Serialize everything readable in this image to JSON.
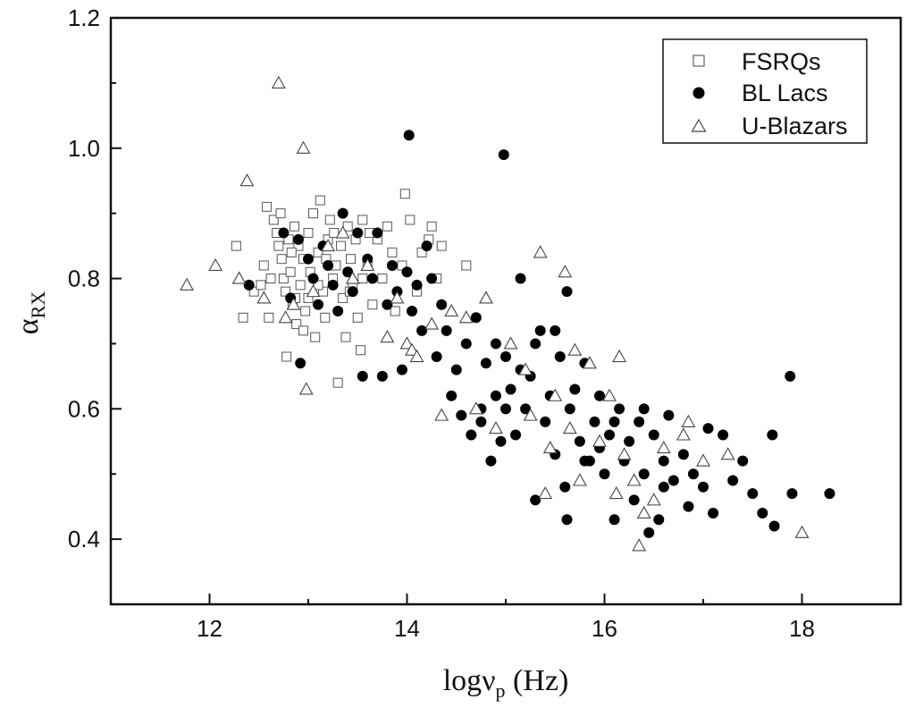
{
  "chart_data": {
    "type": "scatter",
    "title": "",
    "xlabel": {
      "main": "logν",
      "sub": "p",
      "unit": "(Hz)"
    },
    "ylabel": {
      "main": "α",
      "sub": "RX"
    },
    "xlim": [
      11,
      19
    ],
    "ylim": [
      0.3,
      1.2
    ],
    "xticks": [
      12,
      14,
      16,
      18
    ],
    "yticks": [
      0.4,
      0.6,
      0.8,
      1.0,
      1.2
    ],
    "xtick_labels": [
      "12",
      "14",
      "16",
      "18"
    ],
    "ytick_labels": [
      "0.4",
      "0.6",
      "0.8",
      "1.0",
      "1.2"
    ],
    "grid": false,
    "legend_position": "top-right",
    "series": [
      {
        "name": "FSRQs",
        "marker": "open-square",
        "points": [
          [
            12.27,
            0.85
          ],
          [
            12.34,
            0.74
          ],
          [
            12.45,
            0.78
          ],
          [
            12.52,
            0.79
          ],
          [
            12.55,
            0.82
          ],
          [
            12.58,
            0.91
          ],
          [
            12.6,
            0.74
          ],
          [
            12.65,
            0.89
          ],
          [
            12.68,
            0.87
          ],
          [
            12.7,
            0.85
          ],
          [
            12.72,
            0.9
          ],
          [
            12.73,
            0.83
          ],
          [
            12.75,
            0.8
          ],
          [
            12.77,
            0.78
          ],
          [
            12.78,
            0.68
          ],
          [
            12.8,
            0.86
          ],
          [
            12.82,
            0.81
          ],
          [
            12.84,
            0.76
          ],
          [
            12.86,
            0.88
          ],
          [
            12.88,
            0.73
          ],
          [
            12.9,
            0.85
          ],
          [
            12.92,
            0.79
          ],
          [
            12.95,
            0.83
          ],
          [
            12.97,
            0.75
          ],
          [
            13.0,
            0.87
          ],
          [
            13.02,
            0.81
          ],
          [
            13.05,
            0.9
          ],
          [
            13.07,
            0.71
          ],
          [
            13.1,
            0.84
          ],
          [
            13.12,
            0.92
          ],
          [
            13.15,
            0.78
          ],
          [
            13.17,
            0.74
          ],
          [
            13.2,
            0.86
          ],
          [
            13.22,
            0.89
          ],
          [
            13.25,
            0.8
          ],
          [
            13.28,
            0.82
          ],
          [
            13.3,
            0.64
          ],
          [
            13.33,
            0.85
          ],
          [
            13.35,
            0.77
          ],
          [
            13.38,
            0.71
          ],
          [
            13.4,
            0.88
          ],
          [
            13.43,
            0.83
          ],
          [
            13.45,
            0.79
          ],
          [
            13.48,
            0.86
          ],
          [
            13.5,
            0.74
          ],
          [
            13.53,
            0.69
          ],
          [
            13.55,
            0.89
          ],
          [
            13.6,
            0.82
          ],
          [
            13.65,
            0.76
          ],
          [
            13.7,
            0.86
          ],
          [
            13.75,
            0.8
          ],
          [
            13.8,
            0.88
          ],
          [
            13.85,
            0.84
          ],
          [
            13.88,
            0.75
          ],
          [
            13.95,
            0.82
          ],
          [
            13.98,
            0.93
          ],
          [
            14.03,
            0.89
          ],
          [
            14.1,
            0.78
          ],
          [
            14.15,
            0.84
          ],
          [
            14.22,
            0.86
          ],
          [
            14.25,
            0.88
          ],
          [
            14.3,
            0.8
          ],
          [
            14.35,
            0.85
          ],
          [
            14.6,
            0.82
          ],
          [
            13.0,
            0.77
          ],
          [
            12.95,
            0.72
          ],
          [
            13.1,
            0.79
          ],
          [
            13.18,
            0.83
          ],
          [
            13.26,
            0.87
          ],
          [
            13.42,
            0.78
          ],
          [
            12.83,
            0.84
          ],
          [
            12.87,
            0.77
          ],
          [
            13.55,
            0.8
          ],
          [
            13.62,
            0.87
          ],
          [
            12.62,
            0.8
          ]
        ]
      },
      {
        "name": "BL Lacs",
        "marker": "filled-circle",
        "points": [
          [
            12.4,
            0.79
          ],
          [
            12.75,
            0.87
          ],
          [
            12.82,
            0.77
          ],
          [
            12.9,
            0.86
          ],
          [
            12.92,
            0.67
          ],
          [
            13.0,
            0.83
          ],
          [
            13.05,
            0.8
          ],
          [
            13.1,
            0.76
          ],
          [
            13.15,
            0.85
          ],
          [
            13.2,
            0.82
          ],
          [
            13.25,
            0.79
          ],
          [
            13.3,
            0.75
          ],
          [
            13.35,
            0.9
          ],
          [
            13.4,
            0.81
          ],
          [
            13.45,
            0.78
          ],
          [
            13.5,
            0.87
          ],
          [
            13.55,
            0.65
          ],
          [
            13.6,
            0.83
          ],
          [
            13.65,
            0.8
          ],
          [
            13.7,
            0.87
          ],
          [
            13.75,
            0.65
          ],
          [
            13.8,
            0.76
          ],
          [
            13.85,
            0.82
          ],
          [
            13.9,
            0.78
          ],
          [
            13.95,
            0.66
          ],
          [
            14.0,
            0.81
          ],
          [
            14.02,
            1.02
          ],
          [
            14.05,
            0.75
          ],
          [
            14.1,
            0.79
          ],
          [
            14.15,
            0.72
          ],
          [
            14.2,
            0.85
          ],
          [
            14.25,
            0.8
          ],
          [
            14.3,
            0.68
          ],
          [
            14.35,
            0.76
          ],
          [
            14.4,
            0.72
          ],
          [
            14.45,
            0.62
          ],
          [
            14.5,
            0.66
          ],
          [
            14.55,
            0.59
          ],
          [
            14.6,
            0.7
          ],
          [
            14.65,
            0.56
          ],
          [
            14.7,
            0.74
          ],
          [
            14.75,
            0.6
          ],
          [
            14.8,
            0.67
          ],
          [
            14.85,
            0.52
          ],
          [
            14.9,
            0.62
          ],
          [
            14.95,
            0.55
          ],
          [
            14.98,
            0.99
          ],
          [
            15.0,
            0.68
          ],
          [
            15.05,
            0.63
          ],
          [
            15.1,
            0.56
          ],
          [
            15.15,
            0.8
          ],
          [
            15.2,
            0.6
          ],
          [
            15.25,
            0.65
          ],
          [
            15.3,
            0.46
          ],
          [
            15.35,
            0.72
          ],
          [
            15.4,
            0.58
          ],
          [
            15.45,
            0.62
          ],
          [
            15.5,
            0.53
          ],
          [
            15.55,
            0.68
          ],
          [
            15.6,
            0.48
          ],
          [
            15.62,
            0.43
          ],
          [
            15.65,
            0.6
          ],
          [
            15.7,
            0.63
          ],
          [
            15.75,
            0.55
          ],
          [
            15.8,
            0.67
          ],
          [
            15.85,
            0.52
          ],
          [
            15.9,
            0.58
          ],
          [
            15.95,
            0.62
          ],
          [
            16.0,
            0.5
          ],
          [
            16.05,
            0.56
          ],
          [
            16.1,
            0.43
          ],
          [
            16.15,
            0.6
          ],
          [
            16.2,
            0.52
          ],
          [
            16.25,
            0.55
          ],
          [
            16.3,
            0.46
          ],
          [
            16.35,
            0.58
          ],
          [
            16.4,
            0.5
          ],
          [
            16.45,
            0.41
          ],
          [
            16.5,
            0.56
          ],
          [
            16.55,
            0.43
          ],
          [
            16.6,
            0.52
          ],
          [
            16.65,
            0.59
          ],
          [
            16.7,
            0.49
          ],
          [
            16.8,
            0.53
          ],
          [
            16.85,
            0.45
          ],
          [
            16.9,
            0.5
          ],
          [
            17.0,
            0.48
          ],
          [
            17.05,
            0.57
          ],
          [
            17.1,
            0.44
          ],
          [
            17.2,
            0.56
          ],
          [
            17.3,
            0.49
          ],
          [
            17.4,
            0.52
          ],
          [
            17.5,
            0.47
          ],
          [
            17.6,
            0.44
          ],
          [
            17.7,
            0.56
          ],
          [
            17.72,
            0.42
          ],
          [
            17.88,
            0.65
          ],
          [
            17.9,
            0.47
          ],
          [
            18.28,
            0.47
          ],
          [
            15.62,
            0.78
          ],
          [
            15.5,
            0.72
          ],
          [
            15.3,
            0.7
          ],
          [
            14.75,
            0.58
          ],
          [
            15.0,
            0.6
          ],
          [
            15.8,
            0.52
          ],
          [
            16.4,
            0.6
          ],
          [
            14.9,
            0.7
          ],
          [
            15.15,
            0.66
          ],
          [
            15.95,
            0.54
          ],
          [
            16.1,
            0.58
          ],
          [
            16.6,
            0.48
          ]
        ]
      },
      {
        "name": "U-Blazars",
        "marker": "open-triangle",
        "points": [
          [
            11.77,
            0.79
          ],
          [
            12.06,
            0.82
          ],
          [
            12.3,
            0.8
          ],
          [
            12.38,
            0.95
          ],
          [
            12.55,
            0.77
          ],
          [
            12.7,
            1.1
          ],
          [
            12.77,
            0.74
          ],
          [
            12.85,
            0.76
          ],
          [
            12.95,
            1.0
          ],
          [
            12.98,
            0.63
          ],
          [
            13.05,
            0.78
          ],
          [
            13.2,
            0.85
          ],
          [
            13.35,
            0.87
          ],
          [
            13.45,
            0.8
          ],
          [
            13.6,
            0.82
          ],
          [
            13.8,
            0.71
          ],
          [
            14.0,
            0.7
          ],
          [
            14.05,
            0.69
          ],
          [
            14.25,
            0.73
          ],
          [
            14.35,
            0.59
          ],
          [
            14.45,
            0.75
          ],
          [
            14.6,
            0.74
          ],
          [
            14.8,
            0.77
          ],
          [
            14.9,
            0.57
          ],
          [
            15.05,
            0.7
          ],
          [
            15.25,
            0.59
          ],
          [
            15.35,
            0.84
          ],
          [
            15.4,
            0.47
          ],
          [
            15.45,
            0.54
          ],
          [
            15.6,
            0.81
          ],
          [
            15.7,
            0.69
          ],
          [
            15.75,
            0.49
          ],
          [
            15.85,
            0.67
          ],
          [
            15.95,
            0.55
          ],
          [
            16.05,
            0.62
          ],
          [
            16.12,
            0.47
          ],
          [
            16.15,
            0.68
          ],
          [
            16.2,
            0.53
          ],
          [
            16.3,
            0.49
          ],
          [
            16.35,
            0.39
          ],
          [
            16.4,
            0.44
          ],
          [
            16.5,
            0.46
          ],
          [
            16.6,
            0.54
          ],
          [
            16.85,
            0.58
          ],
          [
            17.0,
            0.52
          ],
          [
            17.25,
            0.53
          ],
          [
            18.0,
            0.41
          ],
          [
            15.5,
            0.62
          ],
          [
            15.65,
            0.57
          ],
          [
            14.7,
            0.6
          ],
          [
            15.2,
            0.66
          ],
          [
            16.8,
            0.56
          ],
          [
            13.9,
            0.77
          ],
          [
            14.1,
            0.68
          ]
        ]
      }
    ]
  }
}
